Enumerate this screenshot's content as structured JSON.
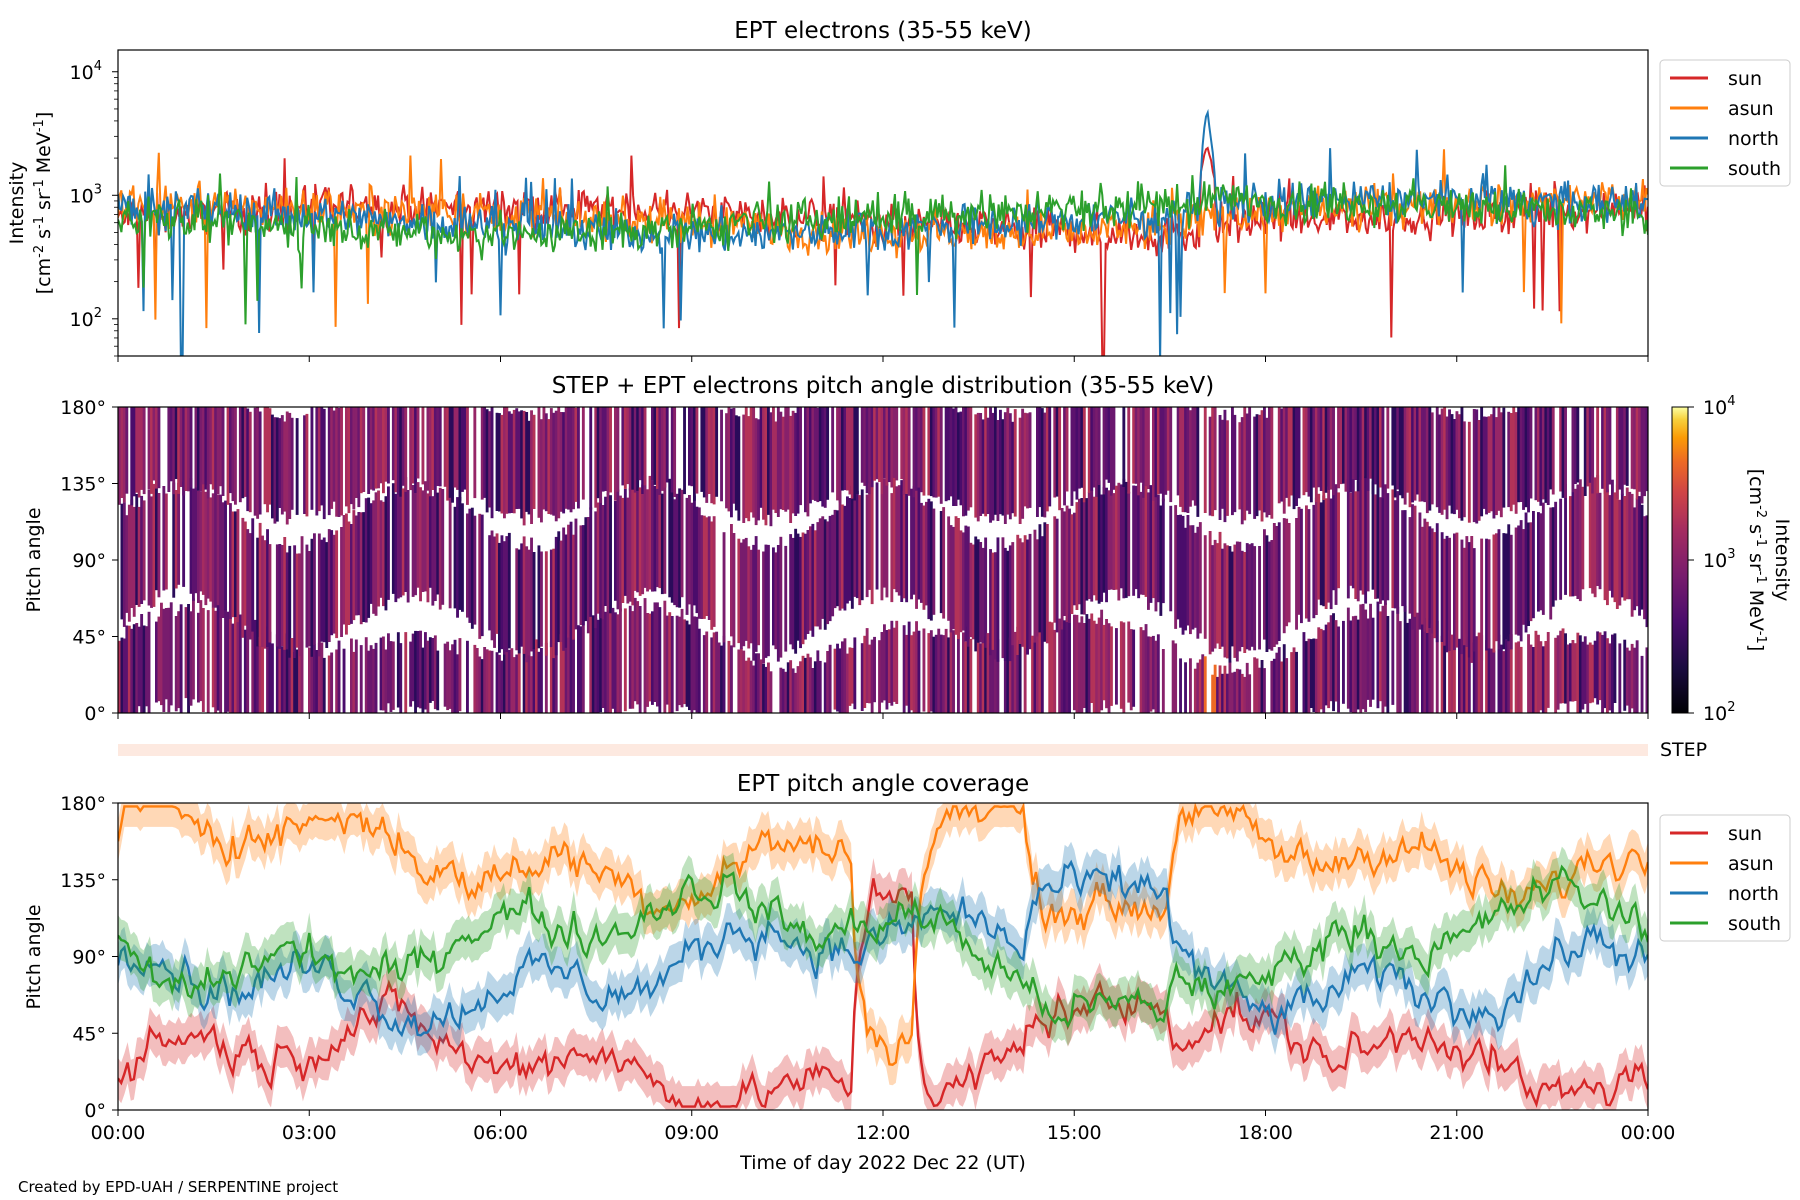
{
  "credit": "Created by EPD-UAH / SERPENTINE project",
  "chart_data": [
    {
      "type": "line",
      "title": "EPT electrons (35-55 keV)",
      "ylabel_lines": [
        "Intensity",
        "[cm",
        "-2",
        " s",
        "-1",
        " sr",
        "-1",
        " MeV",
        "-1",
        "]"
      ],
      "yscale": "log",
      "ylim": [
        50,
        15000
      ],
      "yticks": [
        {
          "base": "10",
          "exp": "2",
          "value": 100
        },
        {
          "base": "10",
          "exp": "3",
          "value": 1000
        },
        {
          "base": "10",
          "exp": "4",
          "value": 10000
        }
      ],
      "xlim_hours": [
        0,
        24
      ],
      "legend_position": "outside-right",
      "baseline": 650,
      "spike": {
        "time": "17:05",
        "north_peak": 5000,
        "sun_peak": 2500
      },
      "series": [
        {
          "name": "sun",
          "color": "#d62728"
        },
        {
          "name": "asun",
          "color": "#ff7f0e"
        },
        {
          "name": "north",
          "color": "#1f77b4"
        },
        {
          "name": "south",
          "color": "#2ca02c"
        }
      ]
    },
    {
      "type": "heatmap",
      "title": "STEP + EPT electrons pitch angle distribution (35-55 keV)",
      "ylabel": "Pitch angle",
      "ylim": [
        0,
        180
      ],
      "yticks": [
        "0°",
        "45°",
        "90°",
        "135°",
        "180°"
      ],
      "colorbar": {
        "scale": "log",
        "range": [
          100,
          10000
        ],
        "ticks": [
          {
            "base": "10",
            "exp": "2"
          },
          {
            "base": "10",
            "exp": "3"
          },
          {
            "base": "10",
            "exp": "4"
          }
        ],
        "label_lines": [
          "Intensity",
          "[cm",
          "-2",
          " s",
          "-1",
          " sr",
          "-1",
          " MeV",
          "-1",
          "]"
        ],
        "colormap": "inferno"
      }
    },
    {
      "type": "bar",
      "label": "STEP",
      "color": "#fde9e0"
    },
    {
      "type": "line",
      "title": "EPT pitch angle coverage",
      "ylabel": "Pitch angle",
      "ylim": [
        0,
        180
      ],
      "yticks": [
        "0°",
        "45°",
        "90°",
        "135°",
        "180°"
      ],
      "xlabel": "Time of day 2022 Dec 22 (UT)",
      "xticks": [
        "00:00",
        "03:00",
        "06:00",
        "09:00",
        "12:00",
        "15:00",
        "18:00",
        "21:00",
        "00:00"
      ],
      "legend_position": "outside-right",
      "series": [
        {
          "name": "sun",
          "color": "#d62728",
          "mean_deg": 25
        },
        {
          "name": "asun",
          "color": "#ff7f0e",
          "mean_deg": 155
        },
        {
          "name": "north",
          "color": "#1f77b4",
          "mean_deg": 85
        },
        {
          "name": "south",
          "color": "#2ca02c",
          "mean_deg": 100
        }
      ]
    }
  ]
}
